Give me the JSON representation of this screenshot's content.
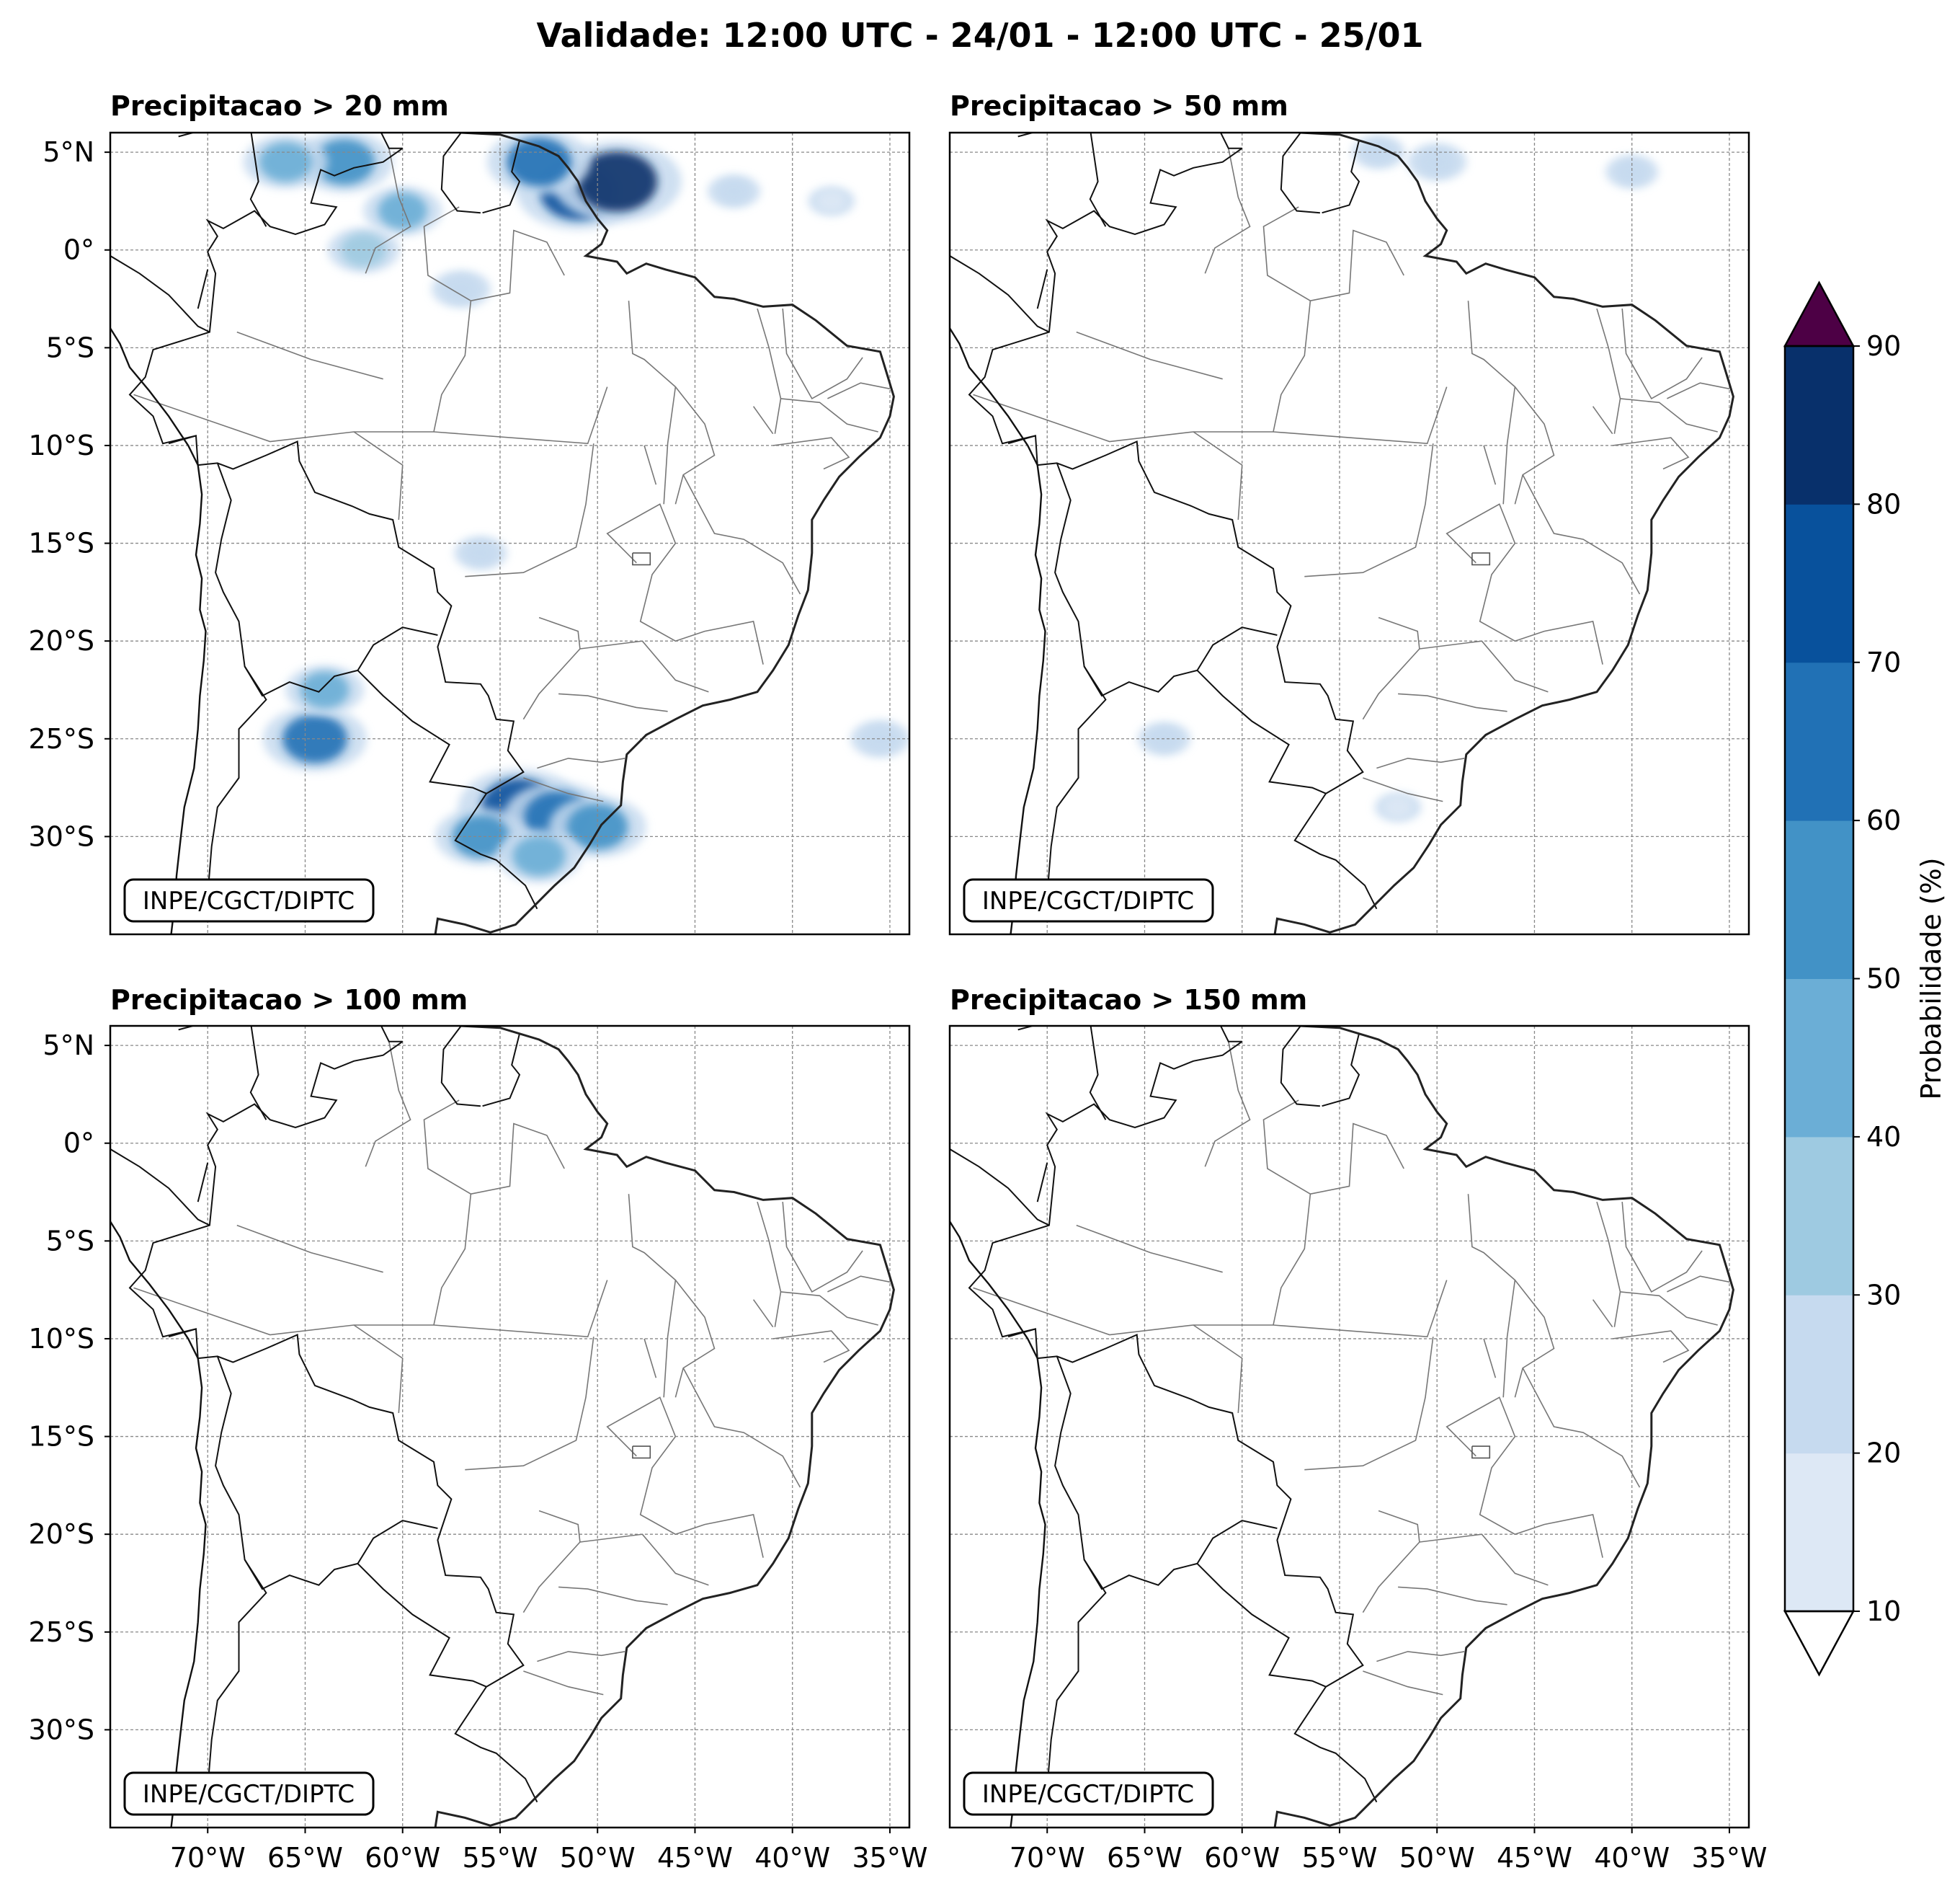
{
  "figure": {
    "title": "Validade: 12:00 UTC - 24/01 - 12:00 UTC - 25/01"
  },
  "axes": {
    "lat_labels": [
      "5°N",
      "0°",
      "5°S",
      "10°S",
      "15°S",
      "20°S",
      "25°S",
      "30°S"
    ],
    "lat_values": [
      5,
      0,
      -5,
      -10,
      -15,
      -20,
      -25,
      -30
    ],
    "lon_labels": [
      "70°W",
      "65°W",
      "60°W",
      "55°W",
      "50°W",
      "45°W",
      "40°W",
      "35°W"
    ],
    "lon_values": [
      -70,
      -65,
      -60,
      -55,
      -50,
      -45,
      -40,
      -35
    ],
    "lon_range": [
      -75,
      -34
    ],
    "lat_range": [
      -35,
      6
    ]
  },
  "panels": [
    {
      "title": "Precipitacao > 20 mm",
      "credit": "INPE/CGCT/DIPTC",
      "threshold_mm": 20
    },
    {
      "title": "Precipitacao > 50 mm",
      "credit": "INPE/CGCT/DIPTC",
      "threshold_mm": 50
    },
    {
      "title": "Precipitacao > 100 mm",
      "credit": "INPE/CGCT/DIPTC",
      "threshold_mm": 100
    },
    {
      "title": "Precipitacao > 150 mm",
      "credit": "INPE/CGCT/DIPTC",
      "threshold_mm": 150
    }
  ],
  "colorbar": {
    "label": "Probabilidade (%)",
    "ticks": [
      "10",
      "20",
      "30",
      "40",
      "50",
      "60",
      "70",
      "80",
      "90"
    ],
    "colors": [
      "#dde8f5",
      "#c6daef",
      "#9ecae1",
      "#6baed6",
      "#4292c6",
      "#2171b5",
      "#08519c",
      "#08306b"
    ],
    "over_color": "#4d0045",
    "under_color": "#ffffff"
  },
  "chart_data": {
    "type": "heatmap",
    "title": "Validade: 12:00 UTC - 24/01 - 12:00 UTC - 25/01",
    "variable": "Probabilidade (%)",
    "levels": [
      10,
      20,
      30,
      40,
      50,
      60,
      70,
      80,
      90
    ],
    "panels": [
      {
        "name": "Precipitacao > 20 mm",
        "features": [
          {
            "lon": -51,
            "lat": 3,
            "value": 75
          },
          {
            "lon": -49,
            "lat": 3.5,
            "value": 80
          },
          {
            "lon": -53,
            "lat": 4.5,
            "value": 60
          },
          {
            "lon": -63,
            "lat": 4.5,
            "value": 55
          },
          {
            "lon": -66,
            "lat": 4.5,
            "value": 45
          },
          {
            "lon": -60,
            "lat": 2,
            "value": 40
          },
          {
            "lon": -62,
            "lat": 0,
            "value": 35
          },
          {
            "lon": -57,
            "lat": -2,
            "value": 25
          },
          {
            "lon": -43,
            "lat": 3,
            "value": 20
          },
          {
            "lon": -38,
            "lat": 2.5,
            "value": 15
          },
          {
            "lon": -64.5,
            "lat": -25,
            "value": 60
          },
          {
            "lon": -64,
            "lat": -22.5,
            "value": 40
          },
          {
            "lon": -54,
            "lat": -28.5,
            "value": 75
          },
          {
            "lon": -52,
            "lat": -29,
            "value": 65
          },
          {
            "lon": -50,
            "lat": -29.5,
            "value": 55
          },
          {
            "lon": -56,
            "lat": -30,
            "value": 50
          },
          {
            "lon": -53,
            "lat": -31,
            "value": 45
          },
          {
            "lon": -56,
            "lat": -15.5,
            "value": 20
          },
          {
            "lon": -35.5,
            "lat": -25,
            "value": 25
          }
        ]
      },
      {
        "name": "Precipitacao > 50 mm",
        "features": [
          {
            "lon": -50,
            "lat": 4.5,
            "value": 25
          },
          {
            "lon": -53,
            "lat": 5,
            "value": 20
          },
          {
            "lon": -40,
            "lat": 4,
            "value": 20
          },
          {
            "lon": -64,
            "lat": -25,
            "value": 20
          },
          {
            "lon": -52,
            "lat": -28.5,
            "value": 15
          }
        ]
      },
      {
        "name": "Precipitacao > 100 mm",
        "features": []
      },
      {
        "name": "Precipitacao > 150 mm",
        "features": []
      }
    ]
  }
}
